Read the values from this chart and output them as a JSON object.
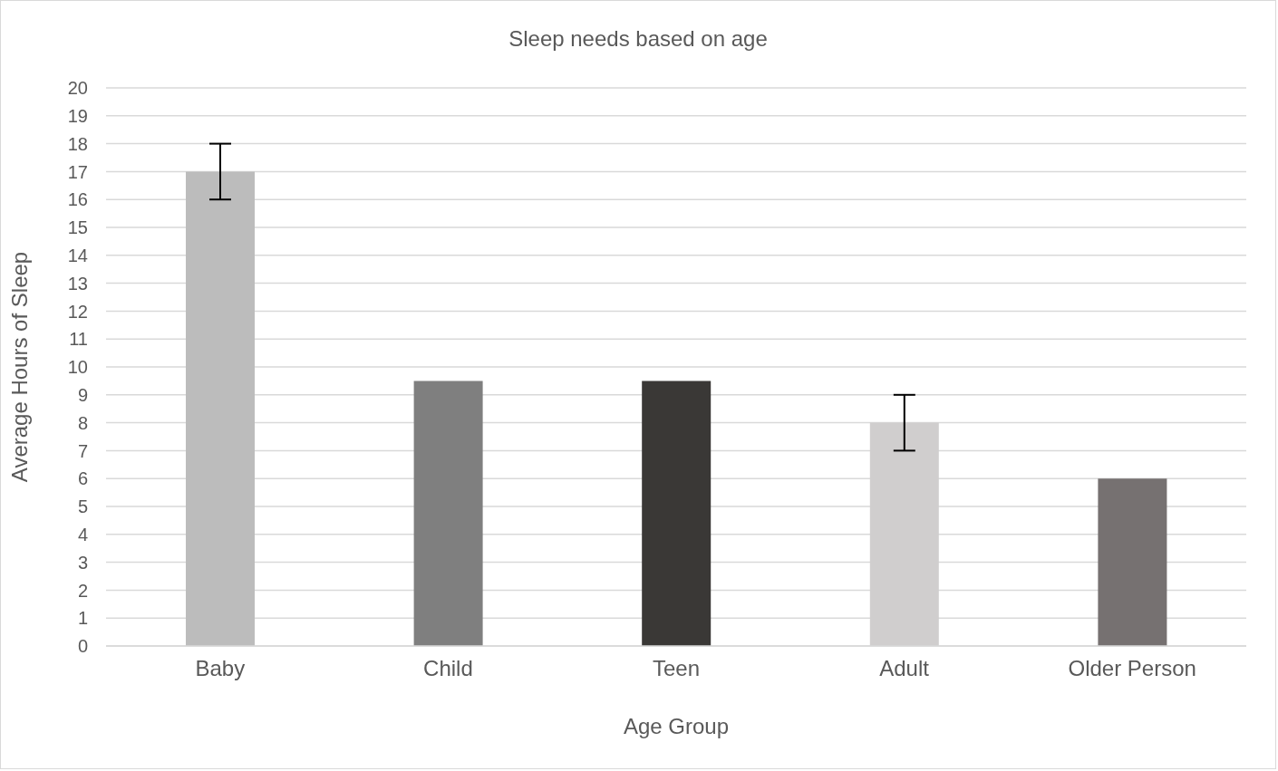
{
  "chart_data": {
    "type": "bar",
    "title": "Sleep needs based on age",
    "xlabel": "Age Group",
    "ylabel": "Average Hours of Sleep",
    "categories": [
      "Baby",
      "Child",
      "Teen",
      "Adult",
      "Older Person"
    ],
    "values": [
      17,
      9.5,
      9.5,
      8,
      6
    ],
    "colors": [
      "#bcbcbc",
      "#7f7f7f",
      "#3a3836",
      "#d0cece",
      "#767171"
    ],
    "errors": [
      1,
      null,
      null,
      1,
      null
    ],
    "ylim": [
      0,
      20
    ],
    "yticks": [
      0,
      1,
      2,
      3,
      4,
      5,
      6,
      7,
      8,
      9,
      10,
      11,
      12,
      13,
      14,
      15,
      16,
      17,
      18,
      19,
      20
    ],
    "grid": "y"
  }
}
